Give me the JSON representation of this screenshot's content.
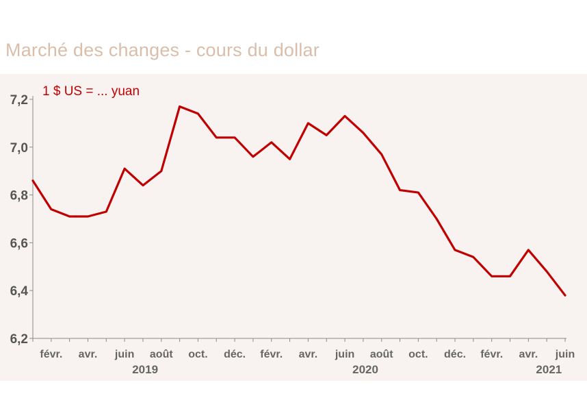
{
  "page": {
    "title": "Marché des changes - cours du dollar"
  },
  "colors": {
    "title": "#d9bfab",
    "panel_background": "#f8f3f1",
    "line": "#c00000",
    "axis_text": "#555555"
  },
  "chart_data": {
    "type": "line",
    "title": "Marché des changes - cours du dollar",
    "unit_label": "1 $ US = ... yuan",
    "ylim": [
      6.2,
      7.2
    ],
    "yticks": [
      "6,2",
      "6,4",
      "6,6",
      "6,8",
      "7,0",
      "7,2"
    ],
    "ytick_values": [
      6.2,
      6.4,
      6.6,
      6.8,
      7.0,
      7.2
    ],
    "xlabels": [
      {
        "label": "févr.",
        "index": 1
      },
      {
        "label": "avr.",
        "index": 3
      },
      {
        "label": "juin",
        "index": 5
      },
      {
        "label": "août",
        "index": 7
      },
      {
        "label": "oct.",
        "index": 9
      },
      {
        "label": "déc.",
        "index": 11
      },
      {
        "label": "févr.",
        "index": 13
      },
      {
        "label": "avr.",
        "index": 15
      },
      {
        "label": "juin",
        "index": 17
      },
      {
        "label": "août",
        "index": 19
      },
      {
        "label": "oct.",
        "index": 21
      },
      {
        "label": "déc.",
        "index": 23
      },
      {
        "label": "févr.",
        "index": 25
      },
      {
        "label": "avr.",
        "index": 27
      },
      {
        "label": "juin",
        "index": 29
      }
    ],
    "years": [
      {
        "label": "2019",
        "index": 5
      },
      {
        "label": "2020",
        "index": 17
      },
      {
        "label": "2021",
        "index": 27
      }
    ],
    "grid": false,
    "series": [
      {
        "values": [
          6.86,
          6.74,
          6.71,
          6.71,
          6.73,
          6.91,
          6.84,
          6.9,
          7.17,
          7.14,
          7.04,
          7.04,
          6.96,
          7.02,
          6.95,
          7.1,
          7.05,
          7.13,
          7.06,
          6.97,
          6.82,
          6.81,
          6.7,
          6.57,
          6.54,
          6.46,
          6.46,
          6.57,
          6.48,
          6.38
        ],
        "color": "#c00000"
      }
    ]
  }
}
